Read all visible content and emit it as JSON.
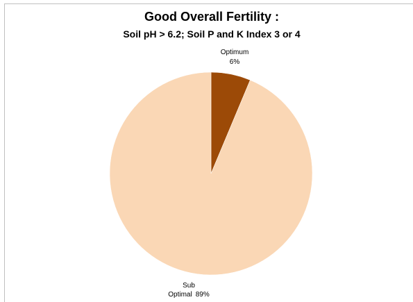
{
  "chart_data": {
    "type": "pie",
    "title": "Good Overall Fertility :",
    "subtitle": "Soil pH > 6.2; Soil P and K Index 3 or 4",
    "slices": [
      {
        "label": "Optimum",
        "value": 6,
        "value_label": "6%",
        "color": "#9c4a07"
      },
      {
        "label": "Sub Optimal",
        "value": 89,
        "value_label": "89%",
        "color": "#fad7b5"
      }
    ],
    "start_angle_deg": 0,
    "direction": "clockwise",
    "legend": "none"
  }
}
